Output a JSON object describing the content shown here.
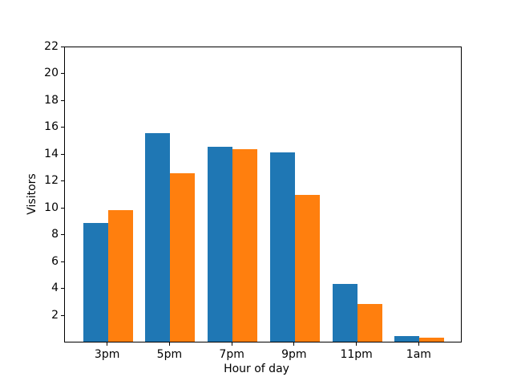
{
  "chart_data": {
    "type": "bar",
    "title": "",
    "xlabel": "Hour of day",
    "ylabel": "Visitors",
    "categories": [
      "3pm",
      "5pm",
      "7pm",
      "9pm",
      "11pm",
      "1am"
    ],
    "series": [
      {
        "name": "blue",
        "color": "#1f77b4",
        "values": [
          8.8,
          15.5,
          14.5,
          14.1,
          4.3,
          0.4
        ]
      },
      {
        "name": "orange",
        "color": "#ff7f0e",
        "values": [
          9.8,
          12.5,
          14.3,
          10.9,
          2.8,
          0.3
        ]
      }
    ],
    "ylim": [
      0,
      22
    ],
    "yticks": [
      2,
      4,
      6,
      8,
      10,
      12,
      14,
      16,
      18,
      20,
      22
    ],
    "grid": false,
    "legend_position": "none",
    "bar_group_layout": "grouped",
    "bar_width_fraction": 0.4,
    "background_color": "#ffffff",
    "axis_color": "#000000"
  }
}
